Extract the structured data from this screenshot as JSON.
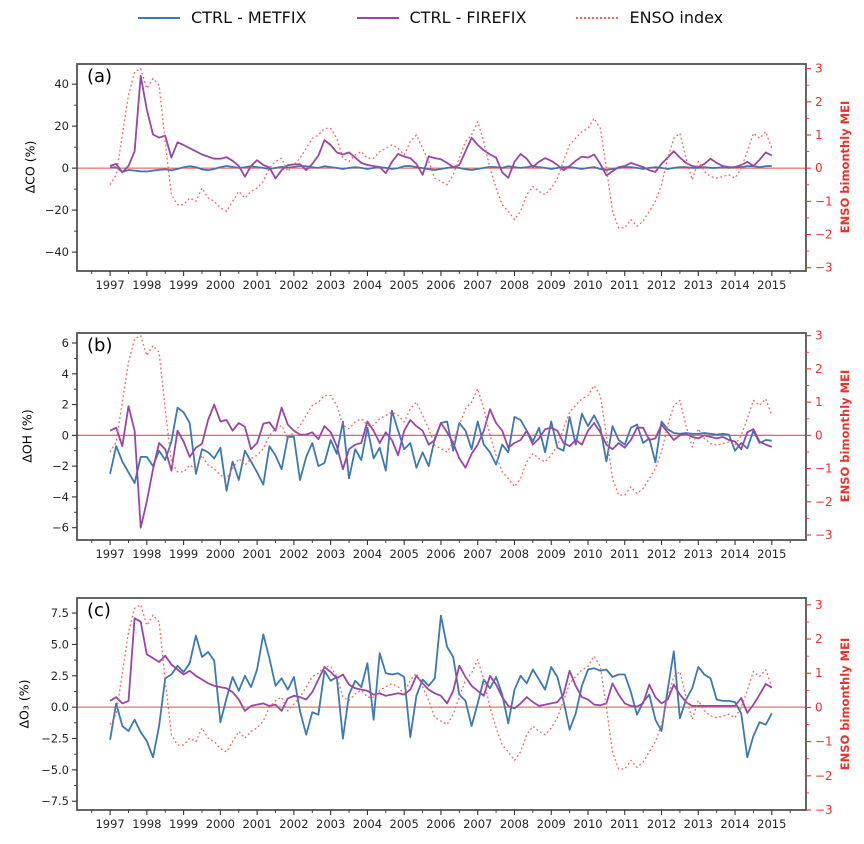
{
  "colors": {
    "metfix_blue": "#3d78b4",
    "firefix_purple": "#9747a5",
    "enso_red": "#f2655c",
    "axis_red": "#e8332b",
    "zero_line": "#f14c42",
    "spine": "#4a4a4a",
    "tick_label": "#262626"
  },
  "legend": {
    "items": [
      {
        "label": "CTRL - METFIX",
        "color_key": "metfix_blue",
        "style": "solid"
      },
      {
        "label": "CTRL - FIREFIX",
        "color_key": "firefix_purple",
        "style": "solid"
      },
      {
        "label": "ENSO index",
        "color_key": "enso_red",
        "style": "dotted"
      }
    ]
  },
  "shared_series": {
    "enso_index": [
      -0.5,
      -0.2,
      1.0,
      2.2,
      2.9,
      3.0,
      2.4,
      2.7,
      2.5,
      0.8,
      -0.8,
      -1.1,
      -1.1,
      -0.9,
      -1.0,
      -0.6,
      -0.9,
      -1.0,
      -1.2,
      -1.3,
      -1.0,
      -0.7,
      -0.9,
      -0.7,
      -0.6,
      -0.4,
      0.0,
      0.2,
      0.3,
      -0.1,
      0.1,
      0.3,
      0.6,
      0.9,
      1.0,
      1.2,
      1.2,
      0.9,
      0.3,
      0.2,
      0.4,
      0.5,
      0.3,
      0.3,
      0.5,
      0.6,
      0.7,
      0.6,
      0.4,
      0.8,
      1.0,
      0.6,
      0.2,
      -0.3,
      -0.4,
      -0.5,
      -0.2,
      0.3,
      0.8,
      1.0,
      1.4,
      0.8,
      0.0,
      -0.6,
      -1.1,
      -1.3,
      -1.55,
      -1.3,
      -0.8,
      -0.55,
      -0.7,
      -0.8,
      -0.6,
      -0.3,
      0.2,
      0.7,
      0.9,
      1.1,
      1.2,
      1.5,
      1.2,
      0.0,
      -1.3,
      -1.8,
      -1.8,
      -1.55,
      -1.75,
      -1.6,
      -1.3,
      -1.0,
      -0.5,
      0.3,
      0.9,
      1.05,
      0.3,
      -0.35,
      0.2,
      -0.1,
      -0.25,
      -0.3,
      -0.25,
      -0.2,
      -0.3,
      0.0,
      0.5,
      1.05,
      0.9,
      1.1,
      0.6
    ]
  },
  "chart_data": [
    {
      "type": "line",
      "label": "(a)",
      "ylabel": "ΔCO (%)",
      "ylim": [
        -49,
        49.6
      ],
      "yticks": [
        40,
        20,
        0,
        -20,
        -40
      ],
      "ytick_labels": [
        "40",
        "20",
        "0",
        "−20",
        "−40"
      ],
      "y_minor_step": 10,
      "right_ylabel": "ENSO bimonthly MEI",
      "right_ylim": [
        -3.1,
        3.14
      ],
      "right_yticks": [
        3,
        2,
        1,
        0,
        -1,
        -2,
        -3
      ],
      "right_ytick_labels": [
        "3",
        "2",
        "1",
        "0",
        "−1",
        "−2",
        "−3"
      ],
      "right_y_minor_step": 0.5,
      "xlim": [
        1996.1,
        2015.93
      ],
      "xticks": [
        1997,
        1998,
        1999,
        2000,
        2001,
        2002,
        2003,
        2004,
        2005,
        2006,
        2007,
        2008,
        2009,
        2010,
        2011,
        2012,
        2013,
        2014,
        2015
      ],
      "x_minor_step": 0.5,
      "x_start": 1997.0,
      "x_step": 0.1666667,
      "series": [
        {
          "name": "CTRL - METFIX",
          "axis": "left",
          "style": "solid",
          "color_key": "metfix_blue",
          "values": [
            0.3,
            0.4,
            -1.8,
            -0.9,
            -1.2,
            -1.5,
            -1.6,
            -1.2,
            -0.8,
            -0.6,
            -1.0,
            -0.4,
            0.4,
            0.9,
            0.5,
            -0.6,
            -1.0,
            -0.4,
            0.5,
            1.0,
            0.6,
            0.1,
            0.4,
            0.9,
            0.5,
            0.1,
            -0.4,
            0.1,
            0.6,
            0.2,
            0.6,
            1.0,
            0.9,
            0.4,
            0.1,
            0.9,
            0.5,
            0.1,
            -0.4,
            0.1,
            0.5,
            0.1,
            -0.4,
            0.1,
            0.5,
            0.1,
            -0.4,
            0.0,
            0.9,
            1.0,
            0.5,
            0.0,
            -0.5,
            -0.9,
            -0.4,
            0.1,
            0.5,
            0.1,
            -0.5,
            -0.9,
            -0.4,
            0.1,
            0.6,
            0.5,
            0.1,
            0.9,
            0.5,
            0.1,
            0.5,
            1.0,
            0.5,
            0.1,
            -0.4,
            0.1,
            0.5,
            0.5,
            0.1,
            -0.4,
            0.1,
            0.5,
            -0.4,
            -0.9,
            -0.4,
            0.1,
            0.5,
            0.5,
            0.1,
            -0.4,
            0.1,
            0.5,
            0.1,
            -0.4,
            0.1,
            0.5,
            0.5,
            0.1,
            0.1,
            0.5,
            0.1,
            0.1,
            0.5,
            0.1,
            0.5,
            0.5,
            0.9,
            0.9,
            0.5,
            0.9,
            1.0
          ]
        },
        {
          "name": "CTRL - FIREFIX",
          "axis": "left",
          "style": "solid",
          "color_key": "firefix_purple",
          "values": [
            1.0,
            2.0,
            -2.0,
            1.0,
            8.0,
            44.0,
            28.0,
            16.0,
            14.5,
            15.5,
            5.0,
            12.3,
            11.0,
            9.5,
            8.0,
            6.5,
            5.5,
            4.5,
            4.5,
            5.2,
            3.5,
            1.0,
            -4.1,
            1.0,
            3.8,
            1.5,
            0.3,
            -4.9,
            -1.0,
            1.4,
            1.8,
            1.9,
            -1.0,
            2.0,
            6.0,
            13.3,
            11.0,
            7.5,
            6.5,
            7.5,
            5.0,
            2.5,
            1.5,
            1.0,
            0.5,
            -2.4,
            3.0,
            6.8,
            5.5,
            4.8,
            2.0,
            -3.2,
            5.6,
            4.8,
            4.2,
            2.5,
            0.5,
            1.5,
            8.0,
            14.5,
            11.0,
            8.5,
            6.5,
            5.0,
            -2.0,
            -4.6,
            3.0,
            6.8,
            4.5,
            0.5,
            3.0,
            4.8,
            3.5,
            1.5,
            -1.0,
            1.0,
            3.5,
            5.5,
            5.0,
            6.5,
            2.0,
            -3.5,
            -1.5,
            0.5,
            1.0,
            2.5,
            1.5,
            0.5,
            -1.0,
            -1.8,
            2.0,
            5.0,
            8.0,
            5.0,
            2.5,
            1.0,
            0.5,
            2.0,
            4.5,
            2.5,
            1.0,
            0.5,
            0.5,
            1.5,
            3.0,
            1.0,
            4.0,
            7.5,
            6.0
          ]
        },
        {
          "name": "ENSO index",
          "axis": "right",
          "style": "dotted",
          "color_key": "enso_red",
          "values_ref": "shared_series.enso_index"
        }
      ]
    },
    {
      "type": "line",
      "label": "(b)",
      "ylabel": "ΔOH (%)",
      "ylim": [
        -6.8,
        6.65
      ],
      "yticks": [
        6,
        4,
        2,
        0,
        -2,
        -4,
        -6
      ],
      "ytick_labels": [
        "6",
        "4",
        "2",
        "0",
        "−2",
        "−4",
        "−6"
      ],
      "y_minor_step": 1,
      "right_ylabel": "ENSO bimonthly MEI",
      "right_ylim": [
        -3.15,
        3.08
      ],
      "right_yticks": [
        3,
        2,
        1,
        0,
        -1,
        -2,
        -3
      ],
      "right_ytick_labels": [
        "3",
        "2",
        "1",
        "0",
        "−1",
        "−2",
        "−3"
      ],
      "right_y_minor_step": 0.5,
      "xlim": [
        1996.1,
        2015.93
      ],
      "xticks": [
        1997,
        1998,
        1999,
        2000,
        2001,
        2002,
        2003,
        2004,
        2005,
        2006,
        2007,
        2008,
        2009,
        2010,
        2011,
        2012,
        2013,
        2014,
        2015
      ],
      "x_minor_step": 0.5,
      "x_start": 1997.0,
      "x_step": 0.1666667,
      "series": [
        {
          "name": "CTRL - METFIX",
          "axis": "left",
          "style": "solid",
          "color_key": "metfix_blue",
          "values": [
            -2.5,
            -0.7,
            -1.7,
            -2.4,
            -3.1,
            -1.4,
            -1.4,
            -2.0,
            -1.0,
            -1.6,
            -0.4,
            1.8,
            1.5,
            0.8,
            -2.5,
            -0.9,
            -1.1,
            -1.5,
            -0.8,
            -3.6,
            -1.7,
            -2.9,
            -1.0,
            -1.7,
            -2.4,
            -3.2,
            -0.7,
            -1.3,
            -2.2,
            -0.1,
            -0.1,
            -2.9,
            -1.4,
            -0.5,
            -2.0,
            -1.8,
            -0.3,
            -1.2,
            0.9,
            -2.8,
            -0.9,
            -1.6,
            0.5,
            -1.5,
            -0.8,
            -2.3,
            1.6,
            0.3,
            -0.9,
            -0.5,
            -2.1,
            -1.1,
            -2.0,
            -0.2,
            0.8,
            0.9,
            -1.0,
            0.8,
            0.3,
            -0.9,
            0.9,
            -0.6,
            -1.1,
            -1.9,
            -0.6,
            -1.1,
            1.2,
            1.0,
            0.3,
            -0.4,
            0.5,
            -1.1,
            0.9,
            -0.8,
            -1.0,
            1.2,
            -0.6,
            1.4,
            0.6,
            1.3,
            0.5,
            -1.7,
            0.6,
            -0.3,
            -0.6,
            0.5,
            0.7,
            -0.5,
            -0.2,
            -1.75,
            0.9,
            0.4,
            0.15,
            0.1,
            0.15,
            0.1,
            0.1,
            0.15,
            0.1,
            0.05,
            0.1,
            0.05,
            -1.0,
            -0.5,
            -0.85,
            0.3,
            -0.5,
            -0.3,
            -0.35
          ]
        },
        {
          "name": "CTRL - FIREFIX",
          "axis": "left",
          "style": "solid",
          "color_key": "firefix_purple",
          "values": [
            0.3,
            0.5,
            -0.7,
            1.9,
            0.3,
            -6.0,
            -4.3,
            -2.2,
            -0.5,
            -0.9,
            -2.3,
            0.3,
            -0.4,
            -1.4,
            -0.8,
            -0.55,
            1.0,
            2.0,
            0.9,
            1.0,
            0.3,
            0.8,
            0.55,
            -0.9,
            -0.5,
            0.75,
            0.85,
            0.3,
            1.8,
            0.7,
            0.3,
            0.05,
            0.05,
            0.2,
            -0.25,
            0.6,
            0.2,
            -0.7,
            -2.2,
            -0.9,
            -0.6,
            -0.5,
            0.9,
            0.3,
            -0.5,
            0.2,
            -0.3,
            -1.3,
            0.3,
            1.0,
            0.6,
            0.3,
            -0.6,
            -0.3,
            0.8,
            0.2,
            -0.5,
            -1.5,
            -2.1,
            -1.2,
            -0.6,
            0.3,
            1.7,
            0.8,
            0.3,
            -0.8,
            -0.5,
            -0.3,
            0.3,
            -0.6,
            -0.2,
            0.4,
            0.5,
            0.3,
            -0.5,
            -0.7,
            -0.3,
            -0.6,
            0.3,
            0.8,
            0.2,
            -0.6,
            -0.9,
            -0.5,
            -0.8,
            -0.3,
            0.5,
            0.5,
            -0.3,
            -0.2,
            0.7,
            0.2,
            -0.3,
            0.0,
            0.1,
            -0.1,
            -0.2,
            0.0,
            -0.1,
            -0.2,
            -0.1,
            -0.3,
            -0.4,
            -0.9,
            0.2,
            0.4,
            -0.4,
            -0.6,
            -0.75
          ]
        },
        {
          "name": "ENSO index",
          "axis": "right",
          "style": "dotted",
          "color_key": "enso_red",
          "values_ref": "shared_series.enso_index"
        }
      ]
    },
    {
      "type": "line",
      "label": "(c)",
      "ylabel": "ΔO₃ (%)",
      "ylim": [
        -8.2,
        8.7
      ],
      "yticks": [
        7.5,
        5.0,
        2.5,
        0.0,
        -2.5,
        -5.0,
        -7.5
      ],
      "ytick_labels": [
        "7.5",
        "5.0",
        "2.5",
        "0.0",
        "−2.5",
        "−5.0",
        "−7.5"
      ],
      "y_minor_step": 1.25,
      "right_ylabel": "ENSO bimonthly MEI",
      "right_ylim": [
        -3.0,
        3.2
      ],
      "right_yticks": [
        3,
        2,
        1,
        0,
        -1,
        -2,
        -3
      ],
      "right_ytick_labels": [
        "3",
        "2",
        "1",
        "0",
        "−1",
        "−2",
        "−3"
      ],
      "right_y_minor_step": 0.5,
      "xlim": [
        1996.1,
        2015.93
      ],
      "xticks": [
        1997,
        1998,
        1999,
        2000,
        2001,
        2002,
        2003,
        2004,
        2005,
        2006,
        2007,
        2008,
        2009,
        2010,
        2011,
        2012,
        2013,
        2014,
        2015
      ],
      "x_minor_step": 0.5,
      "x_start": 1997.0,
      "x_step": 0.1666667,
      "series": [
        {
          "name": "CTRL - METFIX",
          "axis": "left",
          "style": "solid",
          "color_key": "metfix_blue",
          "values": [
            -2.6,
            0.3,
            -1.5,
            -1.9,
            -1.0,
            -2.0,
            -2.7,
            -4.0,
            -1.5,
            2.3,
            2.6,
            3.3,
            2.8,
            3.5,
            5.7,
            4.0,
            4.4,
            3.7,
            -1.2,
            0.7,
            2.4,
            1.3,
            2.5,
            1.6,
            3.0,
            5.8,
            3.9,
            1.7,
            2.3,
            1.4,
            2.4,
            -0.3,
            -2.2,
            -0.4,
            -0.6,
            2.9,
            2.1,
            2.4,
            -2.5,
            1.0,
            2.1,
            1.6,
            3.5,
            -1.0,
            4.3,
            2.7,
            2.6,
            2.7,
            2.4,
            -2.4,
            0.9,
            2.2,
            1.7,
            2.3,
            7.3,
            4.8,
            4.0,
            1.0,
            0.5,
            -1.5,
            0.3,
            2.2,
            1.5,
            2.4,
            1.0,
            -1.3,
            1.4,
            2.5,
            1.9,
            3.0,
            2.2,
            1.4,
            3.2,
            2.4,
            0.5,
            -1.8,
            -0.5,
            1.7,
            3.0,
            3.1,
            2.9,
            3.0,
            2.4,
            2.6,
            2.6,
            1.2,
            -0.6,
            0.4,
            1.0,
            -1.0,
            -1.9,
            1.4,
            4.45,
            -0.9,
            0.6,
            1.5,
            3.2,
            2.6,
            2.3,
            0.6,
            0.5,
            0.5,
            0.4,
            -0.5,
            -4.0,
            -2.3,
            -1.2,
            -1.4,
            -0.5
          ]
        },
        {
          "name": "CTRL - FIREFIX",
          "axis": "left",
          "style": "solid",
          "color_key": "firefix_purple",
          "values": [
            0.5,
            0.8,
            0.3,
            0.5,
            7.1,
            6.8,
            4.2,
            3.9,
            3.6,
            4.1,
            3.4,
            3.0,
            2.6,
            2.9,
            2.5,
            2.2,
            1.9,
            1.7,
            1.6,
            1.5,
            1.2,
            0.6,
            -0.3,
            0.1,
            0.2,
            0.3,
            0.1,
            0.2,
            -0.3,
            0.7,
            0.9,
            0.8,
            0.6,
            1.2,
            2.2,
            3.2,
            2.8,
            2.3,
            2.6,
            1.8,
            1.5,
            1.4,
            1.3,
            1.0,
            1.1,
            0.9,
            1.0,
            1.1,
            1.0,
            1.4,
            2.5,
            1.9,
            1.4,
            1.1,
            0.9,
            0.3,
            1.3,
            3.3,
            2.4,
            1.7,
            1.3,
            0.9,
            2.5,
            1.8,
            0.8,
            0.1,
            -0.1,
            0.3,
            0.8,
            0.4,
            0.1,
            0.2,
            0.3,
            0.4,
            1.0,
            2.9,
            1.7,
            0.8,
            0.6,
            0.2,
            0.15,
            0.3,
            1.9,
            1.0,
            0.3,
            0.1,
            0.05,
            0.3,
            1.8,
            0.8,
            0.3,
            0.6,
            1.8,
            1.0,
            0.4,
            0.1,
            0.1,
            0.1,
            0.1,
            0.1,
            0.1,
            0.1,
            0.1,
            0.73,
            -0.46,
            0.2,
            1.0,
            1.85,
            1.55
          ]
        },
        {
          "name": "ENSO index",
          "axis": "right",
          "style": "dotted",
          "color_key": "enso_red",
          "values_ref": "shared_series.enso_index"
        }
      ]
    }
  ]
}
